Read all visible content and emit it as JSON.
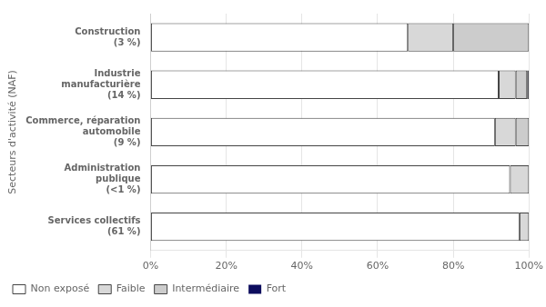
{
  "chart_data": {
    "type": "bar",
    "orientation": "horizontal",
    "stacked": true,
    "categories": [
      "Construction\n(3 %)",
      "Industrie\nmanufacturière\n(14 %)",
      "Commerce, réparation\nautomobile\n(9 %)",
      "Administration\npublique\n(<1 %)",
      "Services collectifs\n(61 %)"
    ],
    "series": [
      {
        "name": "Non exposé",
        "color": "#ffffff",
        "values": [
          68.0,
          92.0,
          91.0,
          95.0,
          97.5
        ]
      },
      {
        "name": "Faible",
        "color": "#d8d8d8",
        "values": [
          12.0,
          4.5,
          5.5,
          5.0,
          2.5
        ]
      },
      {
        "name": "Intermédiaire",
        "color": "#cccccc",
        "values": [
          20.0,
          3.0,
          3.5,
          0.0,
          0.0
        ]
      },
      {
        "name": "Fort",
        "color": "#0d0d5e",
        "values": [
          0.0,
          0.5,
          0.0,
          0.0,
          0.0
        ]
      }
    ],
    "ylabel": "Secteurs d'activité (NAF)",
    "xlim": [
      0,
      100
    ],
    "xticks": [
      {
        "value": 0,
        "label": "0%"
      },
      {
        "value": 20,
        "label": "20%"
      },
      {
        "value": 40,
        "label": "40%"
      },
      {
        "value": 60,
        "label": "60%"
      },
      {
        "value": 80,
        "label": "80%"
      },
      {
        "value": 100,
        "label": "100%"
      }
    ],
    "grid": true,
    "legend": "bottom"
  }
}
